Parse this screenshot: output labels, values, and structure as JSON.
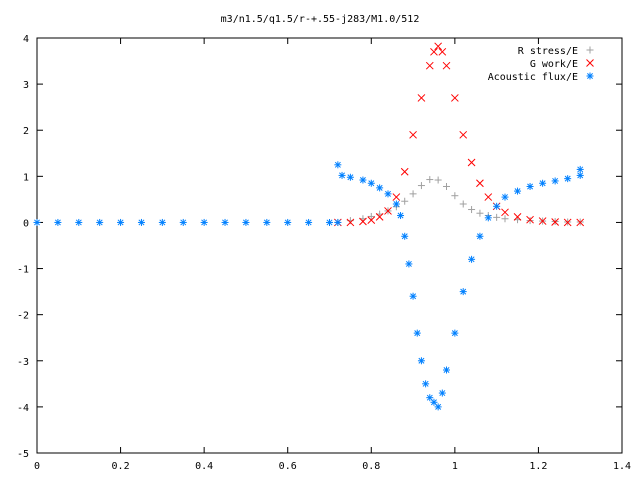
{
  "chart_data": {
    "type": "scatter",
    "title": "m3/n1.5/q1.5/r-+.55-j283/M1.0/512",
    "xlabel": "",
    "ylabel": "",
    "xlim": [
      0,
      1.4
    ],
    "ylim": [
      -5,
      4
    ],
    "xticks": [
      0,
      0.2,
      0.4,
      0.6,
      0.8,
      1,
      1.2,
      1.4
    ],
    "xtick_labels": [
      "0",
      "0.2",
      "0.4",
      "0.6",
      "0.8",
      "1",
      "1.2",
      "1.4"
    ],
    "yticks": [
      -5,
      -4,
      -3,
      -2,
      -1,
      0,
      1,
      2,
      3,
      4
    ],
    "ytick_labels": [
      "-5",
      "-4",
      "-3",
      "-2",
      "-1",
      "0",
      "1",
      "2",
      "3",
      "4"
    ],
    "grid": false,
    "legend_position": "top-right",
    "colors": {
      "r_stress": "#a0a0a0",
      "g_work": "#ff0000",
      "acoustic_flux": "#0080ff"
    },
    "series": [
      {
        "name": "R stress/E",
        "marker": "plus",
        "x": [
          0.72,
          0.75,
          0.78,
          0.8,
          0.82,
          0.84,
          0.86,
          0.88,
          0.9,
          0.92,
          0.94,
          0.96,
          0.98,
          1.0,
          1.02,
          1.04,
          1.06,
          1.08,
          1.1,
          1.12,
          1.15,
          1.18,
          1.21,
          1.24,
          1.27,
          1.3
        ],
        "y": [
          0.0,
          0.04,
          0.08,
          0.13,
          0.18,
          0.25,
          0.34,
          0.46,
          0.62,
          0.8,
          0.93,
          0.92,
          0.78,
          0.58,
          0.4,
          0.28,
          0.2,
          0.15,
          0.11,
          0.08,
          0.06,
          0.04,
          0.03,
          0.02,
          0.01,
          0.01
        ]
      },
      {
        "name": "G work/E",
        "marker": "cross",
        "x": [
          0.72,
          0.75,
          0.78,
          0.8,
          0.82,
          0.84,
          0.86,
          0.88,
          0.9,
          0.92,
          0.94,
          0.95,
          0.96,
          0.97,
          0.98,
          1.0,
          1.02,
          1.04,
          1.06,
          1.08,
          1.1,
          1.12,
          1.15,
          1.18,
          1.21,
          1.24,
          1.27,
          1.3
        ],
        "y": [
          0.0,
          0.0,
          0.02,
          0.05,
          0.12,
          0.25,
          0.55,
          1.1,
          1.9,
          2.7,
          3.4,
          3.7,
          3.82,
          3.7,
          3.4,
          2.7,
          1.9,
          1.3,
          0.85,
          0.55,
          0.35,
          0.22,
          0.12,
          0.06,
          0.03,
          0.01,
          0.0,
          0.0
        ]
      },
      {
        "name": "Acoustic flux/E",
        "marker": "star",
        "x": [
          0.0,
          0.05,
          0.1,
          0.15,
          0.2,
          0.25,
          0.3,
          0.35,
          0.4,
          0.45,
          0.5,
          0.55,
          0.6,
          0.65,
          0.7,
          0.72,
          0.72,
          0.73,
          0.75,
          0.78,
          0.8,
          0.82,
          0.84,
          0.86,
          0.87,
          0.88,
          0.89,
          0.9,
          0.91,
          0.92,
          0.93,
          0.94,
          0.95,
          0.96,
          0.97,
          0.98,
          1.0,
          1.02,
          1.04,
          1.06,
          1.08,
          1.1,
          1.12,
          1.15,
          1.18,
          1.21,
          1.24,
          1.27,
          1.3,
          1.3
        ],
        "y": [
          0.0,
          0.0,
          0.0,
          0.0,
          0.0,
          0.0,
          0.0,
          0.0,
          0.0,
          0.0,
          0.0,
          0.0,
          0.0,
          0.0,
          0.0,
          0.0,
          1.25,
          1.02,
          0.98,
          0.92,
          0.85,
          0.75,
          0.62,
          0.4,
          0.15,
          -0.3,
          -0.9,
          -1.6,
          -2.4,
          -3.0,
          -3.5,
          -3.8,
          -3.9,
          -4.0,
          -3.7,
          -3.2,
          -2.4,
          -1.5,
          -0.8,
          -0.3,
          0.1,
          0.35,
          0.55,
          0.68,
          0.78,
          0.85,
          0.9,
          0.95,
          1.02,
          1.15
        ]
      }
    ]
  }
}
